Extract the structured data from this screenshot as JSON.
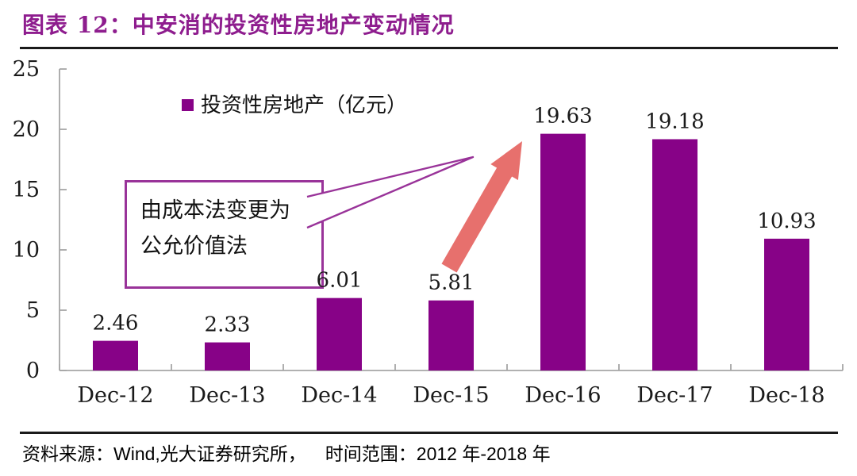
{
  "header": {
    "title": "图表 12：中安消的投资性房地产变动情况"
  },
  "footer": {
    "source": "资料来源：Wind,光大证券研究所，",
    "range": "时间范围：2012 年-2018 年"
  },
  "chart_data": {
    "type": "bar",
    "title": "中安消的投资性房地产变动情况",
    "categories": [
      "Dec-12",
      "Dec-13",
      "Dec-14",
      "Dec-15",
      "Dec-16",
      "Dec-17",
      "Dec-18"
    ],
    "series": [
      {
        "name": "投资性房地产（亿元）",
        "values": [
          2.46,
          2.33,
          6.01,
          5.81,
          19.63,
          19.18,
          10.93
        ]
      }
    ],
    "value_labels": [
      "2.46",
      "2.33",
      "6.01",
      "5.81",
      "19.63",
      "19.18",
      "10.93"
    ],
    "ylim": [
      0,
      25
    ],
    "yticks": [
      0,
      5,
      10,
      15,
      20,
      25
    ],
    "grid": false,
    "legend_position": "top-inside-left",
    "annotation": {
      "line1": "由成本法变更为",
      "line2": "公允价值法",
      "points_to": "Dec-16"
    },
    "colors": {
      "bar": "#870287",
      "arrow": "#E7706D",
      "callout_border": "#993399",
      "axis": "#A6A6A6",
      "title": "#8E1D8E",
      "text": "#1A1A1A"
    }
  }
}
